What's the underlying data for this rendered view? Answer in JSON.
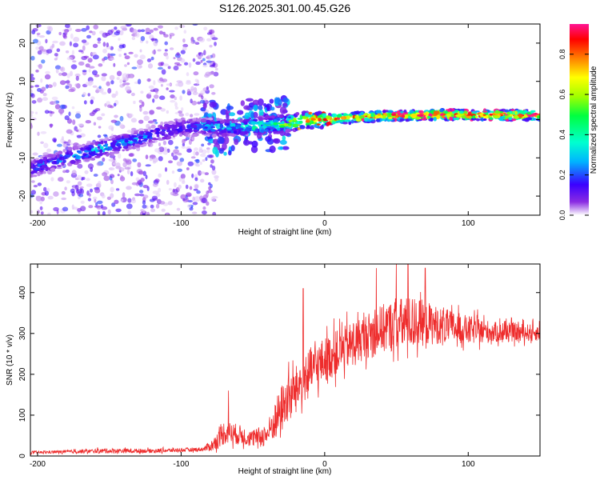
{
  "title": "S126.2025.301.00.45.G26",
  "chart_data": [
    {
      "type": "heatmap",
      "title": "S126.2025.301.00.45.G26",
      "xlabel": "Height of straight line (km)",
      "ylabel": "Frequency (Hz)",
      "xlim": [
        -205,
        150
      ],
      "ylim": [
        -25,
        25
      ],
      "x_ticks": [
        -200,
        -100,
        0,
        100
      ],
      "x_tick_labels": [
        "-200",
        "-100",
        "0",
        "100"
      ],
      "y_ticks": [
        -20,
        -10,
        0,
        10,
        20
      ],
      "y_tick_labels": [
        "-20",
        "-10",
        "0",
        "10",
        "20"
      ],
      "colorbar": {
        "label": "Normalized spectral amplitude",
        "range": [
          0,
          0.95
        ],
        "ticks": [
          0,
          0.2,
          0.4,
          0.6,
          0.8
        ],
        "tick_labels": [
          "0.0",
          "0.2",
          "0.4",
          "0.6",
          "0.8"
        ],
        "colormap": [
          "#ffffff",
          "#8a2be2",
          "#3b00ff",
          "#00b4ff",
          "#00ffd0",
          "#00ff40",
          "#a0ff00",
          "#ffff00",
          "#ff8000",
          "#ff0000",
          "#ff1493"
        ]
      },
      "ridge": {
        "description": "dominant frequency track",
        "x": [
          -205,
          -180,
          -160,
          -140,
          -120,
          -100,
          -80,
          -60,
          -40,
          -20,
          0,
          20,
          40,
          60,
          80,
          100,
          120,
          150
        ],
        "freq": [
          -13,
          -10,
          -8,
          -6,
          -4,
          -2,
          -2,
          -2,
          -1.5,
          -0.5,
          0,
          0.5,
          1,
          1,
          1.3,
          1.2,
          1.2,
          1.2
        ],
        "amplitude": [
          0.22,
          0.28,
          0.32,
          0.3,
          0.25,
          0.22,
          0.28,
          0.35,
          0.45,
          0.65,
          0.78,
          0.85,
          0.88,
          0.9,
          0.92,
          0.9,
          0.88,
          0.85
        ]
      },
      "noise_region_x": [
        -205,
        -80
      ]
    },
    {
      "type": "line",
      "xlabel": "Height of straight line (km)",
      "ylabel": "SNR (10 * v/v)",
      "xlim": [
        -205,
        150
      ],
      "ylim": [
        0,
        470
      ],
      "x_ticks": [
        -200,
        -100,
        0,
        100
      ],
      "x_tick_labels": [
        "-200",
        "-100",
        "0",
        "100"
      ],
      "y_ticks": [
        0,
        100,
        200,
        300,
        400
      ],
      "y_tick_labels": [
        "0",
        "100",
        "200",
        "300",
        "400"
      ],
      "series": [
        {
          "name": "SNR",
          "color": "#ee2c2c",
          "envelope_x": [
            -205,
            -180,
            -150,
            -120,
            -100,
            -85,
            -78,
            -70,
            -60,
            -50,
            -40,
            -30,
            -20,
            -10,
            0,
            10,
            20,
            30,
            40,
            50,
            60,
            70,
            80,
            100,
            120,
            150
          ],
          "baseline": [
            8,
            10,
            12,
            12,
            14,
            16,
            25,
            55,
            50,
            40,
            50,
            110,
            160,
            200,
            230,
            250,
            270,
            290,
            305,
            315,
            320,
            320,
            315,
            305,
            300,
            300
          ],
          "jitter": [
            6,
            8,
            12,
            10,
            10,
            10,
            30,
            60,
            50,
            40,
            60,
            120,
            110,
            120,
            110,
            110,
            110,
            110,
            120,
            130,
            130,
            110,
            90,
            70,
            50,
            40
          ],
          "peaks": [
            {
              "x": -15,
              "y": 410
            },
            {
              "x": 50,
              "y": 470
            },
            {
              "x": 58,
              "y": 470
            },
            {
              "x": 36,
              "y": 460
            },
            {
              "x": 70,
              "y": 460
            },
            {
              "x": -67,
              "y": 160
            }
          ]
        }
      ]
    }
  ]
}
